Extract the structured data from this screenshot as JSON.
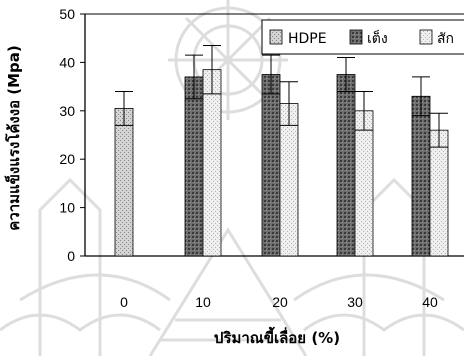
{
  "chart_data": {
    "type": "bar",
    "categories": [
      "0",
      "10",
      "20",
      "30",
      "40"
    ],
    "series": [
      {
        "name": "HDPE",
        "values": [
          30.5,
          null,
          null,
          null,
          null
        ],
        "errors": [
          3.5,
          null,
          null,
          null,
          null
        ]
      },
      {
        "name": "เต็ง",
        "values": [
          null,
          37,
          37.5,
          37.5,
          33
        ],
        "errors": [
          null,
          4.5,
          4,
          3.5,
          4
        ]
      },
      {
        "name": "สัก",
        "values": [
          null,
          38.5,
          31.5,
          30,
          26
        ],
        "errors": [
          null,
          5,
          4.5,
          4,
          3.5
        ]
      }
    ],
    "ylabel": "ความแข็งแรงโค้งงอ (Mpa)",
    "xlabel": "ปริมาณขี้เลื่อย (%)",
    "ylim": [
      0,
      50
    ],
    "yticks": [
      "0",
      "10",
      "20",
      "30",
      "40",
      "50"
    ],
    "grid": false,
    "legend": "top-right",
    "colors": {
      "HDPE": "#c8c8c8",
      "เต็ง": "#6a6a6a",
      "สัก": "#ededed",
      "watermark": "#d9d9d9"
    }
  }
}
